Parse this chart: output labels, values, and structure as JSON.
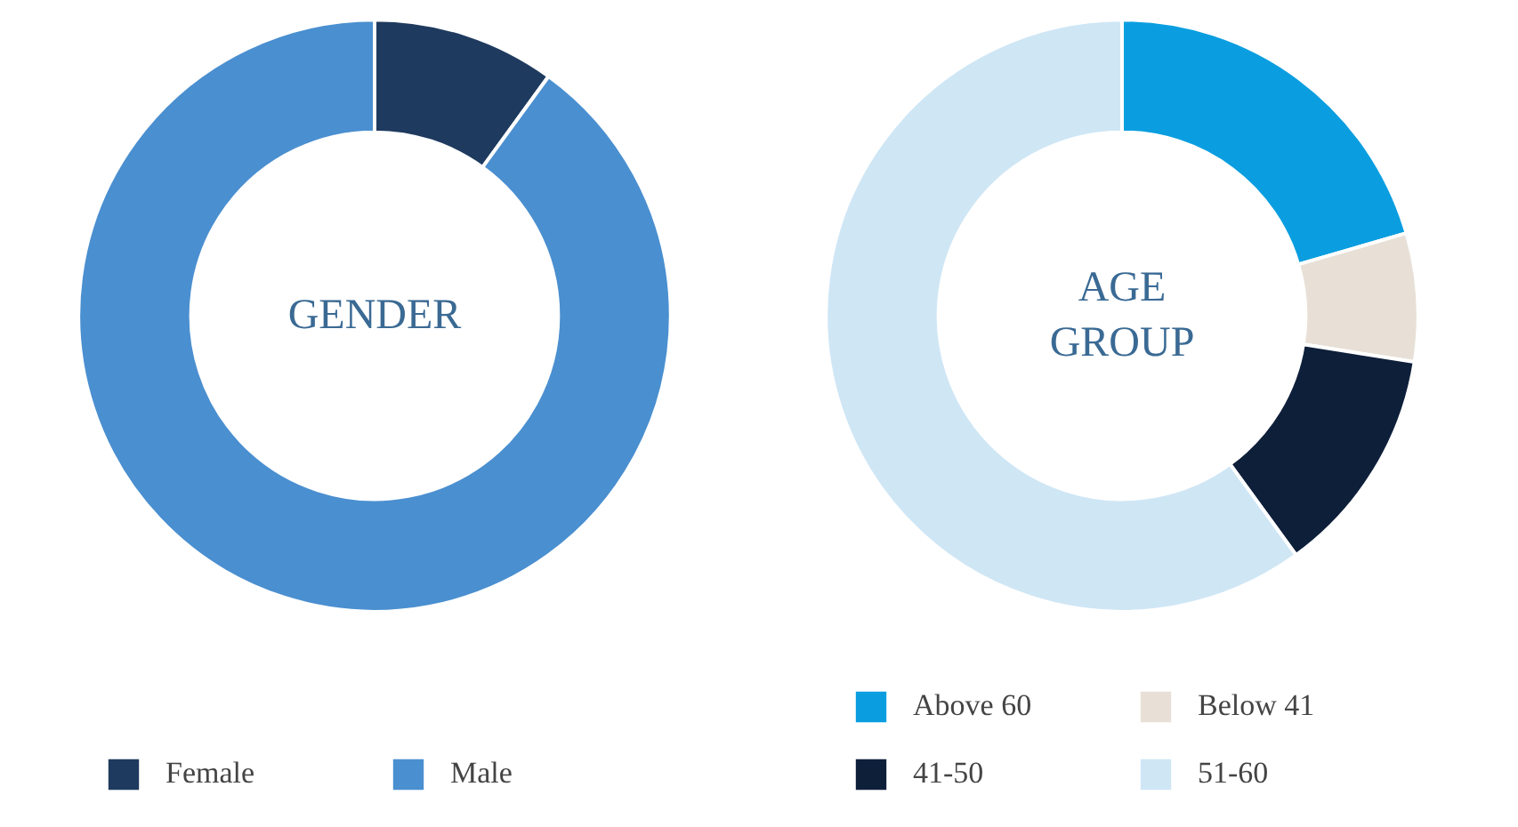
{
  "chart_data": [
    {
      "type": "donut",
      "title": "GENDER",
      "categories": [
        "Female",
        "Male"
      ],
      "values": [
        10,
        90
      ],
      "colors": [
        "#1f3a5f",
        "#4a8fd0"
      ],
      "legend": "bottom"
    },
    {
      "type": "donut",
      "title": "AGE GROUP",
      "categories": [
        "Above 60",
        "Below 41",
        "41-50",
        "51-60"
      ],
      "values": [
        20.5,
        7,
        12.5,
        60
      ],
      "colors": [
        "#0a9ee0",
        "#e8e0d6",
        "#0e1f3a",
        "#cfe6f5"
      ],
      "legend": "bottom"
    }
  ]
}
